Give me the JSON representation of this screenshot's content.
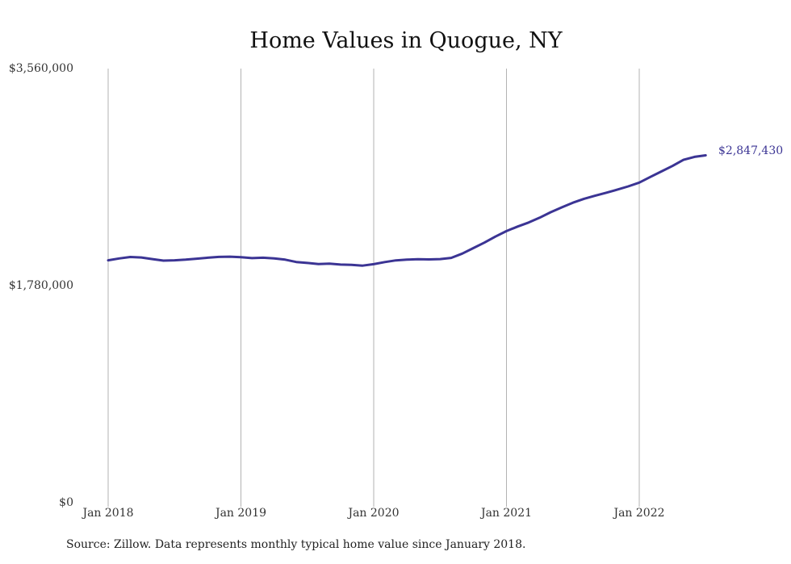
{
  "source_note": "Source: Zillow. Data represents monthly typical home value since January 2018.",
  "chart_data": {
    "type": "line",
    "title": "Home Values in Quogue, NY",
    "xlabel": "",
    "ylabel": "",
    "line_color": "#3b3494",
    "grid": "vertical",
    "ylim": [
      0,
      3560000
    ],
    "y_ticks": [
      "$0",
      "$1,780,000",
      "$3,560,000"
    ],
    "y_tick_values": [
      0,
      1780000,
      3560000
    ],
    "x_ticks": [
      "Jan 2018",
      "Jan 2019",
      "Jan 2020",
      "Jan 2021",
      "Jan 2022"
    ],
    "x_tick_dates": [
      "2018-01",
      "2019-01",
      "2020-01",
      "2021-01",
      "2022-01"
    ],
    "end_label": "$2,847,430",
    "series": [
      {
        "x": [
          "2018-01",
          "2018-02",
          "2018-03",
          "2018-04",
          "2018-05",
          "2018-06",
          "2018-07",
          "2018-08",
          "2018-09",
          "2018-10",
          "2018-11",
          "2018-12",
          "2019-01",
          "2019-02",
          "2019-03",
          "2019-04",
          "2019-05",
          "2019-06",
          "2019-07",
          "2019-08",
          "2019-09",
          "2019-10",
          "2019-11",
          "2019-12",
          "2020-01",
          "2020-02",
          "2020-03",
          "2020-04",
          "2020-05",
          "2020-06",
          "2020-07",
          "2020-08",
          "2020-09",
          "2020-10",
          "2020-11",
          "2020-12",
          "2021-01",
          "2021-02",
          "2021-03",
          "2021-04",
          "2021-05",
          "2021-06",
          "2021-07",
          "2021-08",
          "2021-09",
          "2021-10",
          "2021-11",
          "2021-12",
          "2022-01",
          "2022-02",
          "2022-03",
          "2022-04",
          "2022-05",
          "2022-06",
          "2022-07"
        ],
        "values": [
          1985000,
          2000000,
          2012000,
          2008000,
          1995000,
          1982000,
          1985000,
          1990000,
          1998000,
          2006000,
          2013000,
          2015000,
          2011000,
          2003000,
          2006000,
          2000000,
          1990000,
          1971000,
          1963000,
          1954000,
          1957000,
          1950000,
          1947000,
          1941000,
          1953000,
          1970000,
          1984000,
          1990000,
          1994000,
          1992000,
          1995000,
          2005000,
          2040000,
          2085000,
          2130000,
          2180000,
          2225000,
          2262000,
          2295000,
          2335000,
          2380000,
          2420000,
          2458000,
          2490000,
          2515000,
          2540000,
          2565000,
          2592000,
          2623000,
          2670000,
          2715000,
          2760000,
          2810000,
          2835000,
          2847430
        ]
      }
    ]
  }
}
